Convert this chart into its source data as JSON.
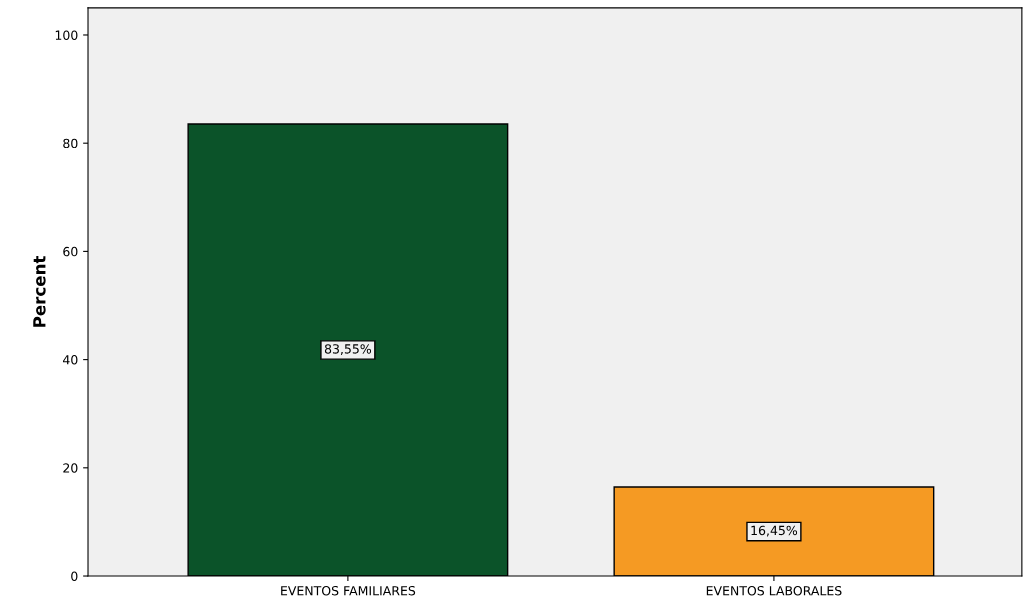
{
  "chart_data": {
    "type": "bar",
    "ylabel": "Percent",
    "categories": [
      "EVENTOS FAMILIARES",
      "EVENTOS LABORALES"
    ],
    "values": [
      83.55,
      16.45
    ],
    "colors": [
      "#0b5329",
      "#f59a23"
    ],
    "value_labels": [
      "83,55%",
      "16,45%"
    ],
    "ylim": [
      0,
      105
    ],
    "yticks": [
      0,
      20,
      40,
      60,
      80,
      100
    ],
    "grid": false,
    "legend": false
  }
}
